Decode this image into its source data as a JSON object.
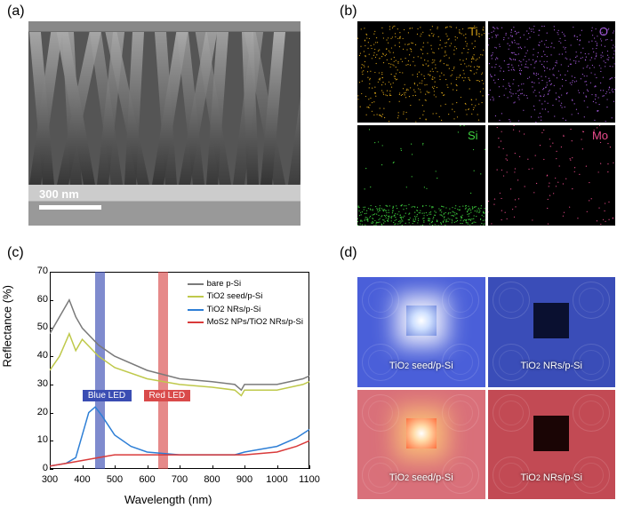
{
  "labels": {
    "a": "(a)",
    "b": "(b)",
    "c": "(c)",
    "d": "(d)"
  },
  "panel_a": {
    "scale_text": "300 nm",
    "rod_skews": [
      -8,
      5,
      -12,
      3,
      10,
      -6,
      8,
      -3,
      12,
      -9,
      4,
      -10,
      6,
      -4,
      9,
      -7,
      2,
      -5,
      11,
      -8
    ]
  },
  "panel_b": {
    "maps": [
      {
        "element": "Ti",
        "color": "#d4a017",
        "pattern": "rods"
      },
      {
        "element": "O",
        "color": "#a259d9",
        "pattern": "rods"
      },
      {
        "element": "Si",
        "color": "#3fd13f",
        "pattern": "bottom"
      },
      {
        "element": "Mo",
        "color": "#e94b8b",
        "pattern": "sparse"
      }
    ]
  },
  "panel_c": {
    "xlabel": "Wavelength (nm)",
    "ylabel": "Reflectance (%)",
    "xlim": [
      300,
      1100
    ],
    "ylim": [
      0,
      70
    ],
    "xticks": [
      300,
      400,
      500,
      600,
      700,
      800,
      900,
      1000,
      1100
    ],
    "yticks": [
      0,
      10,
      20,
      30,
      40,
      50,
      60,
      70
    ],
    "blue_led": {
      "x": 440,
      "width": 30,
      "color": "#3a4db3",
      "label": "Blue LED"
    },
    "red_led": {
      "x": 635,
      "width": 30,
      "color": "#d94a4a",
      "label": "Red LED"
    },
    "legend_fontsize": 9.5,
    "series": [
      {
        "name": "bare p-Si",
        "color": "#7a7a7a",
        "points": [
          [
            300,
            48
          ],
          [
            340,
            56
          ],
          [
            360,
            60
          ],
          [
            380,
            54
          ],
          [
            400,
            50
          ],
          [
            450,
            44
          ],
          [
            500,
            40
          ],
          [
            600,
            35
          ],
          [
            700,
            32
          ],
          [
            800,
            31
          ],
          [
            870,
            30
          ],
          [
            890,
            28
          ],
          [
            900,
            30
          ],
          [
            1000,
            30
          ],
          [
            1080,
            32
          ],
          [
            1100,
            33
          ]
        ]
      },
      {
        "name": "TiO₂ seed/p-Si",
        "color": "#bfc94b",
        "points": [
          [
            300,
            35
          ],
          [
            330,
            40
          ],
          [
            360,
            48
          ],
          [
            380,
            42
          ],
          [
            400,
            46
          ],
          [
            450,
            40
          ],
          [
            500,
            36
          ],
          [
            600,
            32
          ],
          [
            700,
            30
          ],
          [
            800,
            29
          ],
          [
            870,
            28
          ],
          [
            890,
            26
          ],
          [
            900,
            28
          ],
          [
            1000,
            28
          ],
          [
            1080,
            30
          ],
          [
            1100,
            31
          ]
        ]
      },
      {
        "name": "TiO₂ NRs/p-Si",
        "color": "#2e7fd6",
        "points": [
          [
            300,
            1
          ],
          [
            350,
            2
          ],
          [
            380,
            4
          ],
          [
            400,
            12
          ],
          [
            420,
            20
          ],
          [
            440,
            22
          ],
          [
            460,
            19
          ],
          [
            500,
            12
          ],
          [
            550,
            8
          ],
          [
            600,
            6
          ],
          [
            700,
            5
          ],
          [
            800,
            5
          ],
          [
            870,
            5
          ],
          [
            900,
            6
          ],
          [
            1000,
            8
          ],
          [
            1060,
            11
          ],
          [
            1100,
            14
          ]
        ]
      },
      {
        "name": "MoS₂ NPs/TiO₂ NRs/p-Si",
        "color": "#d93a3a",
        "points": [
          [
            300,
            1
          ],
          [
            350,
            2
          ],
          [
            400,
            3
          ],
          [
            450,
            4
          ],
          [
            500,
            5
          ],
          [
            600,
            5
          ],
          [
            700,
            5
          ],
          [
            800,
            5
          ],
          [
            870,
            5
          ],
          [
            900,
            5
          ],
          [
            1000,
            6
          ],
          [
            1060,
            8
          ],
          [
            1100,
            10
          ]
        ]
      }
    ]
  },
  "panel_d": {
    "photos": [
      {
        "bg": "#4a5fd9",
        "sample": "seed_blue",
        "label": "TiO₂ seed/p-Si"
      },
      {
        "bg": "#3a4db8",
        "sample": "nr_blue",
        "label": "TiO₂ NRs/p-Si"
      },
      {
        "bg": "#d9707a",
        "sample": "seed_red",
        "label": "TiO₂ seed/p-Si"
      },
      {
        "bg": "#c24a54",
        "sample": "nr_red",
        "label": "TiO₂ NRs/p-Si"
      }
    ]
  }
}
